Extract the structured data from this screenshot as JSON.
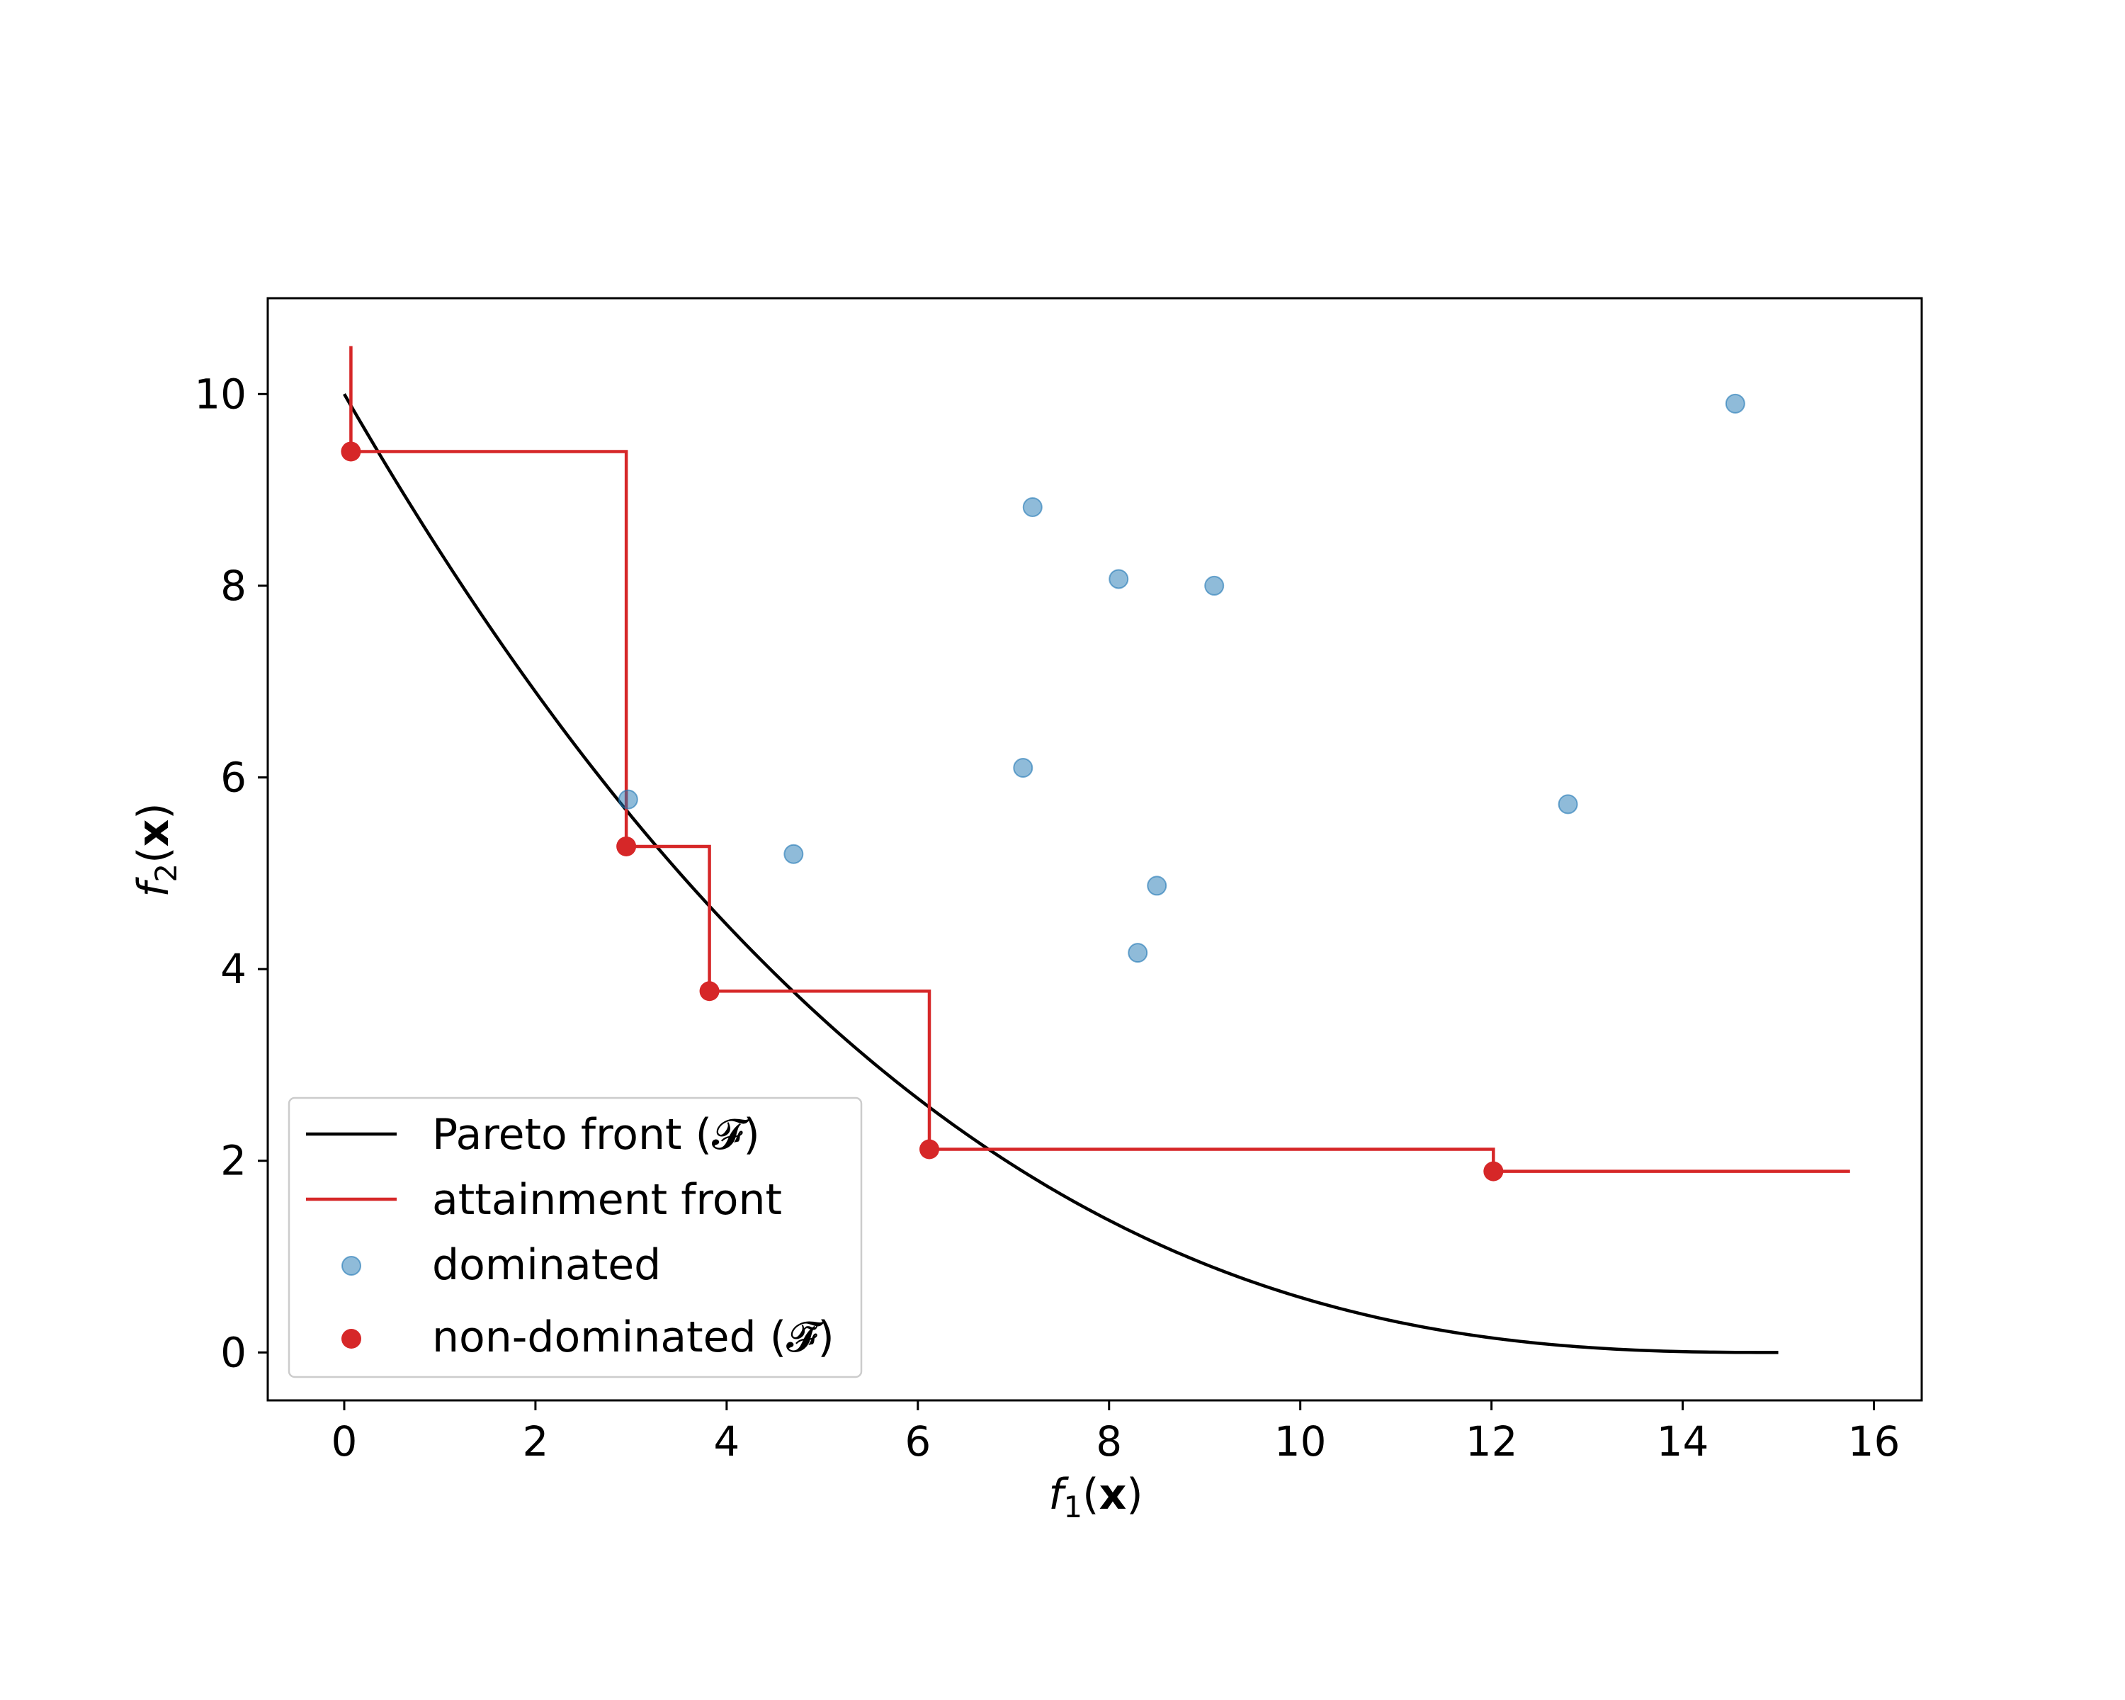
{
  "chart_data": {
    "type": "scatter",
    "xlabel": {
      "base": "f",
      "sub": "1",
      "paren_open": "(",
      "arg": "x",
      "paren_close": ")"
    },
    "ylabel": {
      "base": "f",
      "sub": "2",
      "paren_open": "(",
      "arg": "x",
      "paren_close": ")"
    },
    "xlim": [
      -0.8,
      16.5
    ],
    "ylim": [
      -0.5,
      11.0
    ],
    "xticks": [
      0,
      2,
      4,
      6,
      8,
      10,
      12,
      14,
      16
    ],
    "yticks": [
      0,
      2,
      4,
      6,
      8,
      10
    ],
    "grid": false,
    "legend_position": "lower-left",
    "colors": {
      "pareto": "#000000",
      "attainment": "#d62728",
      "dominated": "#1f77b4",
      "nondominated": "#d62728"
    },
    "legend": [
      {
        "label": "Pareto front (𝓕)",
        "key": "pareto"
      },
      {
        "label": "attainment front",
        "key": "attainment"
      },
      {
        "label": "dominated",
        "key": "dominated"
      },
      {
        "label": "non-dominated (𝓕̃)",
        "key": "nondominated"
      }
    ],
    "series": [
      {
        "name": "Pareto front (𝓕)",
        "kind": "line",
        "function": "f2 = 10 * (1 - f1/15)^2.6",
        "x_range": [
          0,
          15
        ]
      },
      {
        "name": "attainment front",
        "kind": "step",
        "x": [
          0.07,
          0.07,
          2.95,
          2.95,
          3.82,
          3.82,
          6.12,
          6.12,
          12.02,
          12.02,
          15.75
        ],
        "y": [
          10.5,
          9.4,
          9.4,
          5.28,
          5.28,
          3.77,
          3.77,
          2.12,
          2.12,
          1.89,
          1.89
        ]
      },
      {
        "name": "dominated",
        "kind": "scatter",
        "points": [
          {
            "x": 2.97,
            "y": 5.77
          },
          {
            "x": 4.7,
            "y": 5.2
          },
          {
            "x": 7.1,
            "y": 6.1
          },
          {
            "x": 7.2,
            "y": 8.82
          },
          {
            "x": 8.1,
            "y": 8.07
          },
          {
            "x": 9.1,
            "y": 8.0
          },
          {
            "x": 8.5,
            "y": 4.87
          },
          {
            "x": 8.3,
            "y": 4.17
          },
          {
            "x": 12.8,
            "y": 5.72
          },
          {
            "x": 14.55,
            "y": 9.9
          }
        ]
      },
      {
        "name": "non-dominated (𝓕̃)",
        "kind": "scatter",
        "points": [
          {
            "x": 0.07,
            "y": 9.4
          },
          {
            "x": 2.95,
            "y": 5.28
          },
          {
            "x": 3.82,
            "y": 3.77
          },
          {
            "x": 6.12,
            "y": 2.12
          },
          {
            "x": 12.02,
            "y": 1.89
          }
        ]
      }
    ]
  }
}
